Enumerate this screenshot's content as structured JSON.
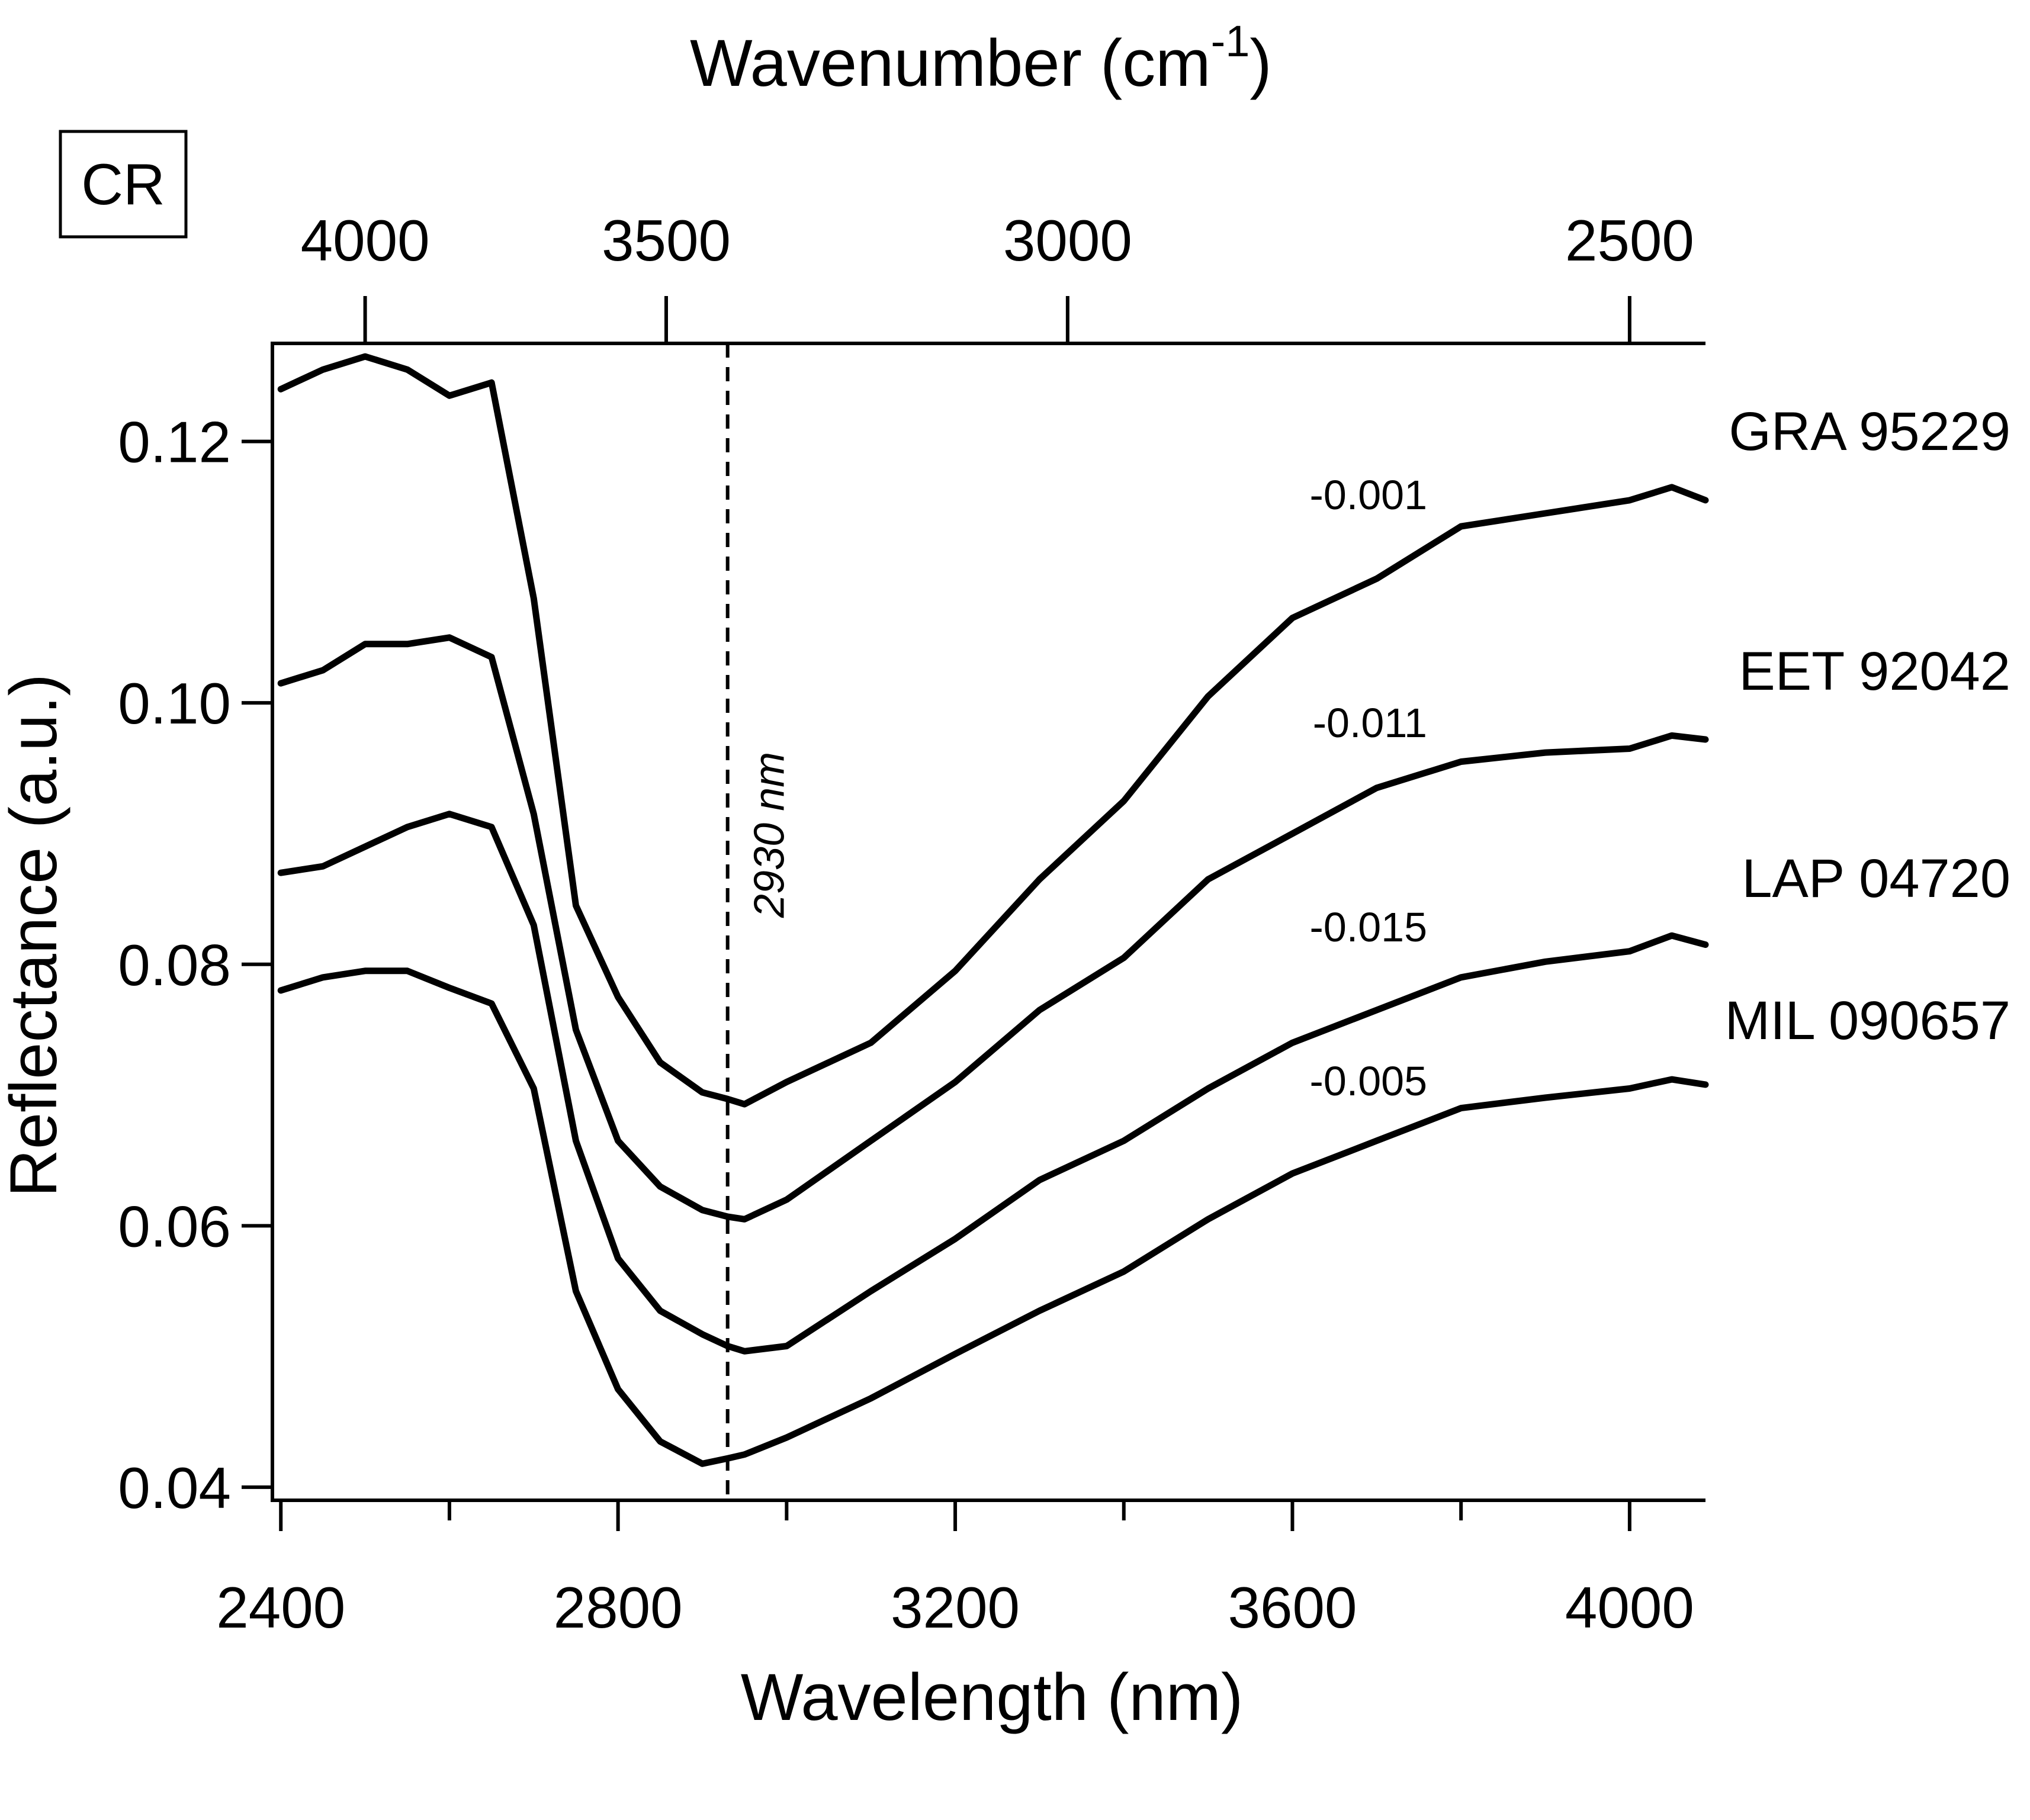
{
  "chart_data": {
    "type": "line",
    "panel_tag": "CR",
    "xlabel": "Wavelength (nm)",
    "ylabel": "Reflectance (a.u.)",
    "top_xlabel": "Wavenumber (cm",
    "top_xlabel_superscript": "-1",
    "top_xlabel_close": ")",
    "xlim": [
      2390,
      4090
    ],
    "ylim": [
      0.039,
      0.1275
    ],
    "x_ticks": [
      2400,
      2800,
      3200,
      3600,
      4000
    ],
    "x_minor_ticks": [
      2600,
      3000,
      3400,
      3800
    ],
    "x_tick_labels": [
      "2400",
      "2800",
      "3200",
      "3600",
      "4000"
    ],
    "y_ticks": [
      0.04,
      0.06,
      0.08,
      0.1,
      0.12
    ],
    "y_tick_labels": [
      "0.04",
      "0.06",
      "0.08",
      "0.10",
      "0.12"
    ],
    "top_ticks": [
      4000,
      3500,
      3000,
      2500
    ],
    "top_tick_labels": [
      "4000",
      "3500",
      "3000",
      "2500"
    ],
    "marker": {
      "x": 2930,
      "label": "2930 nm"
    },
    "x": [
      2400,
      2450,
      2500,
      2550,
      2600,
      2650,
      2700,
      2750,
      2800,
      2850,
      2900,
      2930,
      2950,
      3000,
      3100,
      3200,
      3300,
      3400,
      3500,
      3600,
      3700,
      3800,
      3900,
      4000,
      4050,
      4090
    ],
    "series": [
      {
        "name": "GRA 95229",
        "offset_label": "-0.001",
        "values": [
          0.124,
          0.1255,
          0.1265,
          0.1255,
          0.1235,
          0.1245,
          0.108,
          0.0845,
          0.0775,
          0.0725,
          0.0702,
          0.0697,
          0.0693,
          0.071,
          0.074,
          0.0795,
          0.0865,
          0.0925,
          0.1005,
          0.1065,
          0.1095,
          0.1135,
          0.1145,
          0.1155,
          0.1165,
          0.1155
        ]
      },
      {
        "name": "EET 92042",
        "offset_label": "-0.011",
        "values": [
          0.1015,
          0.1025,
          0.1045,
          0.1045,
          0.105,
          0.1035,
          0.0915,
          0.075,
          0.0665,
          0.063,
          0.0612,
          0.0607,
          0.0605,
          0.062,
          0.0665,
          0.071,
          0.0765,
          0.0805,
          0.0865,
          0.09,
          0.0935,
          0.0955,
          0.0962,
          0.0965,
          0.0975,
          0.0972
        ]
      },
      {
        "name": "LAP 04720",
        "offset_label": "-0.015",
        "values": [
          0.087,
          0.0875,
          0.089,
          0.0905,
          0.0915,
          0.0905,
          0.083,
          0.0665,
          0.0575,
          0.0535,
          0.0517,
          0.0508,
          0.0504,
          0.0508,
          0.055,
          0.059,
          0.0635,
          0.0665,
          0.0705,
          0.074,
          0.0765,
          0.079,
          0.0802,
          0.081,
          0.0822,
          0.0815
        ]
      },
      {
        "name": "MIL 090657",
        "offset_label": "-0.005",
        "values": [
          0.078,
          0.079,
          0.0795,
          0.0795,
          0.0782,
          0.077,
          0.0705,
          0.055,
          0.0475,
          0.0435,
          0.0418,
          0.0422,
          0.0425,
          0.0438,
          0.0468,
          0.0502,
          0.0535,
          0.0565,
          0.0605,
          0.064,
          0.0665,
          0.069,
          0.0698,
          0.0705,
          0.0712,
          0.0708
        ]
      }
    ]
  }
}
